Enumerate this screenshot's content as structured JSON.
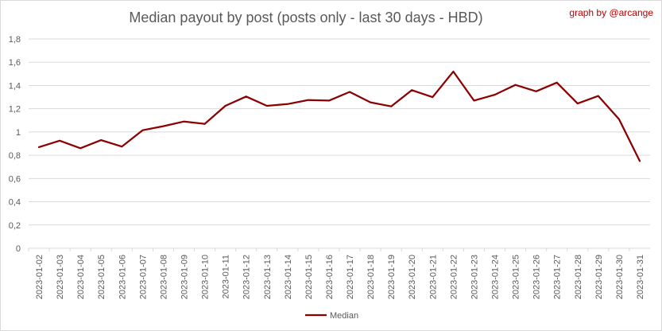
{
  "chart_data": {
    "type": "line",
    "title": "Median payout by post (posts only - last 30 days - HBD)",
    "credit": "graph by @arcange",
    "xlabel": "",
    "ylabel": "",
    "ylim": [
      0,
      1.8
    ],
    "yticks": [
      "0",
      "0,2",
      "0,4",
      "0,6",
      "0,8",
      "1",
      "1,2",
      "1,4",
      "1,6",
      "1,8"
    ],
    "ytick_values": [
      0,
      0.2,
      0.4,
      0.6,
      0.8,
      1.0,
      1.2,
      1.4,
      1.6,
      1.8
    ],
    "grid": true,
    "legend_position": "bottom",
    "line_color": "#8b0000",
    "categories": [
      "2023-01-02",
      "2023-01-03",
      "2023-01-04",
      "2023-01-05",
      "2023-01-06",
      "2023-01-07",
      "2023-01-08",
      "2023-01-09",
      "2023-01-10",
      "2023-01-11",
      "2023-01-12",
      "2023-01-13",
      "2023-01-14",
      "2023-01-15",
      "2023-01-16",
      "2023-01-17",
      "2023-01-18",
      "2023-01-19",
      "2023-01-20",
      "2023-01-21",
      "2023-01-22",
      "2023-01-23",
      "2023-01-24",
      "2023-01-25",
      "2023-01-26",
      "2023-01-27",
      "2023-01-28",
      "2023-01-29",
      "2023-01-30",
      "2023-01-31"
    ],
    "series": [
      {
        "name": "Median",
        "values": [
          0.87,
          0.925,
          0.86,
          0.93,
          0.875,
          1.015,
          1.05,
          1.09,
          1.07,
          1.225,
          1.305,
          1.225,
          1.24,
          1.275,
          1.27,
          1.345,
          1.255,
          1.22,
          1.36,
          1.3,
          1.52,
          1.27,
          1.32,
          1.405,
          1.35,
          1.425,
          1.245,
          1.31,
          1.11,
          0.75
        ]
      }
    ]
  }
}
